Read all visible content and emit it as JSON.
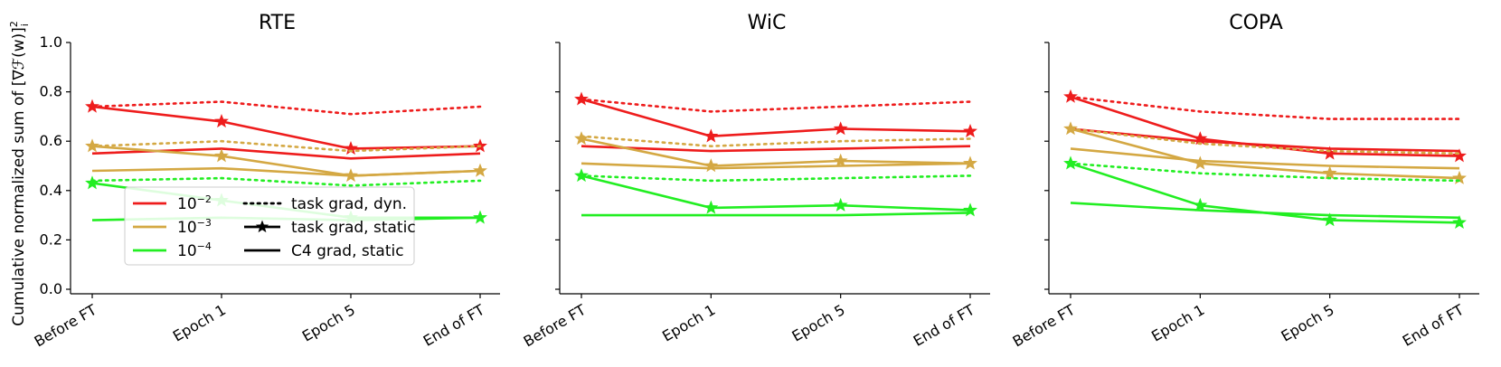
{
  "chart_data": {
    "type": "line",
    "ylabel": "Cumulative normalized sum of [∇ℱ(w)]",
    "ylabel_sub": "i",
    "ylabel_sup": "2",
    "ylim": [
      0.0,
      1.0
    ],
    "yticks": [
      "0.0",
      "0.2",
      "0.4",
      "0.6",
      "0.8",
      "1.0"
    ],
    "categories": [
      "Before FT",
      "Epoch 1",
      "Epoch 5",
      "End of FT"
    ],
    "colors": {
      "1e-2": "#ee1c1c",
      "1e-3": "#d4a843",
      "1e-4": "#22ee22"
    },
    "legend": {
      "placement": "lower-left",
      "lr_entries": [
        {
          "key": "1e-2",
          "base": "10",
          "exp": "−2"
        },
        {
          "key": "1e-3",
          "base": "10",
          "exp": "−3"
        },
        {
          "key": "1e-4",
          "base": "10",
          "exp": "−4"
        }
      ],
      "style_entries": [
        {
          "style": "dotted",
          "label": "task grad, dyn."
        },
        {
          "style": "star",
          "label": "task grad, static"
        },
        {
          "style": "solid",
          "label": "C4 grad, static"
        }
      ]
    },
    "panels": [
      {
        "title": "RTE",
        "series": [
          {
            "lr": "1e-2",
            "style": "dotted",
            "values": [
              0.74,
              0.76,
              0.71,
              0.74
            ]
          },
          {
            "lr": "1e-2",
            "style": "star",
            "values": [
              0.74,
              0.68,
              0.57,
              0.58
            ]
          },
          {
            "lr": "1e-2",
            "style": "solid",
            "values": [
              0.55,
              0.57,
              0.53,
              0.55
            ]
          },
          {
            "lr": "1e-3",
            "style": "dotted",
            "values": [
              0.58,
              0.6,
              0.56,
              0.58
            ]
          },
          {
            "lr": "1e-3",
            "style": "star",
            "values": [
              0.58,
              0.54,
              0.46,
              0.48
            ]
          },
          {
            "lr": "1e-3",
            "style": "solid",
            "values": [
              0.48,
              0.49,
              0.46,
              0.48
            ]
          },
          {
            "lr": "1e-4",
            "style": "dotted",
            "values": [
              0.44,
              0.45,
              0.42,
              0.44
            ]
          },
          {
            "lr": "1e-4",
            "style": "star",
            "values": [
              0.43,
              0.36,
              0.29,
              0.29
            ]
          },
          {
            "lr": "1e-4",
            "style": "solid",
            "values": [
              0.28,
              0.29,
              0.28,
              0.29
            ]
          }
        ]
      },
      {
        "title": "WiC",
        "series": [
          {
            "lr": "1e-2",
            "style": "dotted",
            "values": [
              0.77,
              0.72,
              0.74,
              0.76
            ]
          },
          {
            "lr": "1e-2",
            "style": "star",
            "values": [
              0.77,
              0.62,
              0.65,
              0.64
            ]
          },
          {
            "lr": "1e-2",
            "style": "solid",
            "values": [
              0.58,
              0.56,
              0.57,
              0.58
            ]
          },
          {
            "lr": "1e-3",
            "style": "dotted",
            "values": [
              0.62,
              0.58,
              0.6,
              0.61
            ]
          },
          {
            "lr": "1e-3",
            "style": "star",
            "values": [
              0.61,
              0.5,
              0.52,
              0.51
            ]
          },
          {
            "lr": "1e-3",
            "style": "solid",
            "values": [
              0.51,
              0.49,
              0.5,
              0.51
            ]
          },
          {
            "lr": "1e-4",
            "style": "dotted",
            "values": [
              0.46,
              0.44,
              0.45,
              0.46
            ]
          },
          {
            "lr": "1e-4",
            "style": "star",
            "values": [
              0.46,
              0.33,
              0.34,
              0.32
            ]
          },
          {
            "lr": "1e-4",
            "style": "solid",
            "values": [
              0.3,
              0.3,
              0.3,
              0.31
            ]
          }
        ]
      },
      {
        "title": "COPA",
        "series": [
          {
            "lr": "1e-2",
            "style": "dotted",
            "values": [
              0.78,
              0.72,
              0.69,
              0.69
            ]
          },
          {
            "lr": "1e-2",
            "style": "star",
            "values": [
              0.78,
              0.61,
              0.55,
              0.54
            ]
          },
          {
            "lr": "1e-2",
            "style": "solid",
            "values": [
              0.65,
              0.6,
              0.57,
              0.56
            ]
          },
          {
            "lr": "1e-3",
            "style": "dotted",
            "values": [
              0.65,
              0.59,
              0.56,
              0.55
            ]
          },
          {
            "lr": "1e-3",
            "style": "star",
            "values": [
              0.65,
              0.51,
              0.47,
              0.45
            ]
          },
          {
            "lr": "1e-3",
            "style": "solid",
            "values": [
              0.57,
              0.52,
              0.5,
              0.49
            ]
          },
          {
            "lr": "1e-4",
            "style": "dotted",
            "values": [
              0.51,
              0.47,
              0.45,
              0.44
            ]
          },
          {
            "lr": "1e-4",
            "style": "star",
            "values": [
              0.51,
              0.34,
              0.28,
              0.27
            ]
          },
          {
            "lr": "1e-4",
            "style": "solid",
            "values": [
              0.35,
              0.32,
              0.3,
              0.29
            ]
          }
        ]
      }
    ]
  }
}
